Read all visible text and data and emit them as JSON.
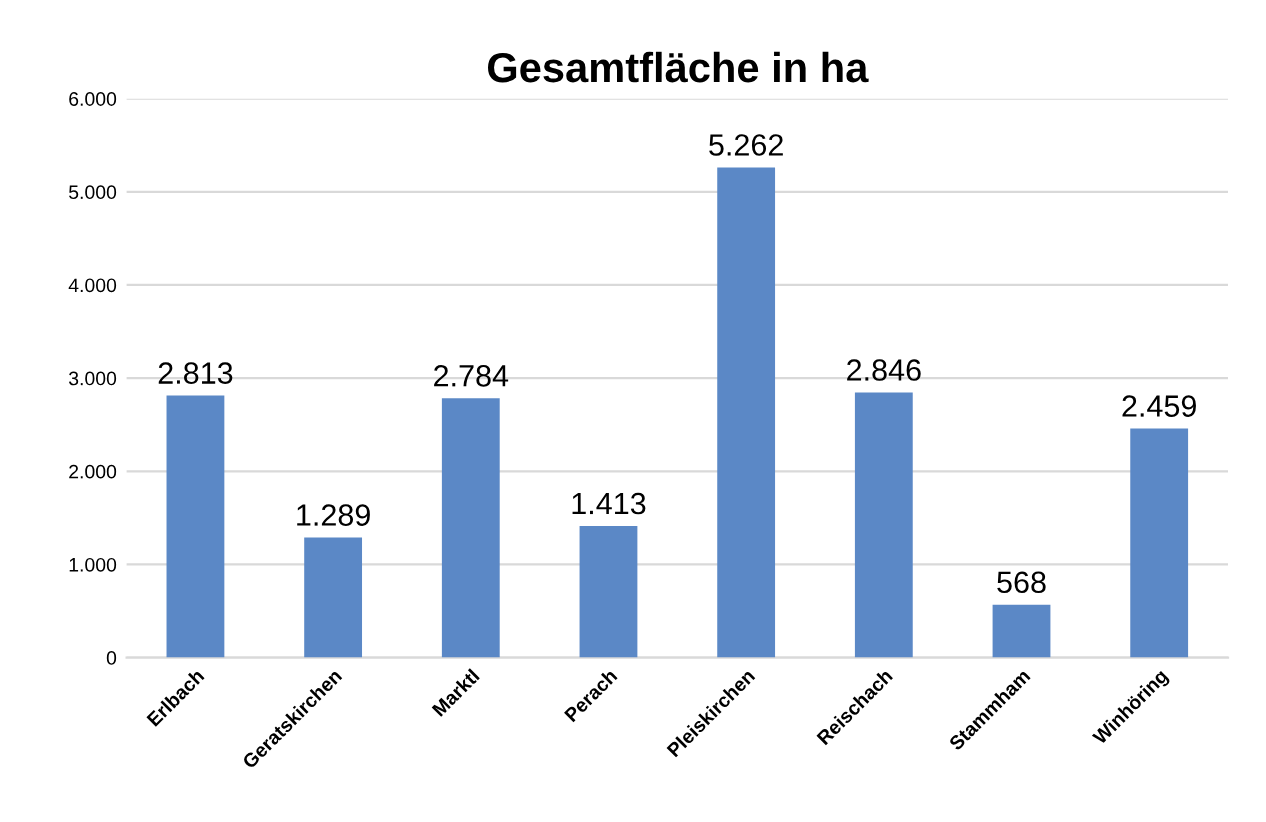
{
  "chart_data": {
    "type": "bar",
    "title": "Gesamtfläche in ha",
    "categories": [
      "Erlbach",
      "Geratskirchen",
      "Marktl",
      "Perach",
      "Pleiskirchen",
      "Reischach",
      "Stammham",
      "Winhöring"
    ],
    "values": [
      2813,
      1289,
      2784,
      1413,
      5262,
      2846,
      568,
      2459
    ],
    "value_labels": [
      "2.813",
      "1.289",
      "2.784",
      "1.413",
      "5.262",
      "2.846",
      "568",
      "2.459"
    ],
    "color": "#5b88c6",
    "ylim": [
      0,
      6000
    ],
    "yticks": [
      {
        "value": 0,
        "label": "0"
      },
      {
        "value": 1000,
        "label": "1.000"
      },
      {
        "value": 2000,
        "label": "2.000"
      },
      {
        "value": 3000,
        "label": "3.000"
      },
      {
        "value": 4000,
        "label": "4.000"
      },
      {
        "value": 5000,
        "label": "5.000"
      },
      {
        "value": 6000,
        "label": "6.000"
      }
    ],
    "grid": "y"
  }
}
